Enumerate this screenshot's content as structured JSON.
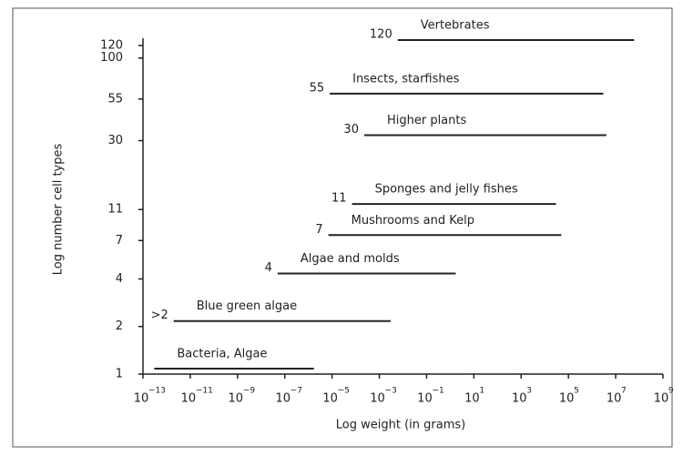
{
  "chart_data": {
    "type": "range-bar",
    "x_label": "Log weight (in grams)",
    "y_label": "Log number cell types",
    "x_scale": "log",
    "y_scale": "log",
    "xlim": [
      1e-13,
      1000000000.0
    ],
    "ylim": [
      1,
      120
    ],
    "xticks": [
      {
        "value": 1e-13,
        "label": "10",
        "sup": "−13"
      },
      {
        "value": 1e-11,
        "label": "10",
        "sup": "−11"
      },
      {
        "value": 1e-09,
        "label": "10",
        "sup": "−9"
      },
      {
        "value": 1e-07,
        "label": "10",
        "sup": "−7"
      },
      {
        "value": 1e-05,
        "label": "10",
        "sup": "−5"
      },
      {
        "value": 0.001,
        "label": "10",
        "sup": "−3"
      },
      {
        "value": 0.1,
        "label": "10",
        "sup": "−1"
      },
      {
        "value": 10,
        "label": "10",
        "sup": "1"
      },
      {
        "value": 1000,
        "label": "10",
        "sup": "3"
      },
      {
        "value": 100000,
        "label": "10",
        "sup": "5"
      },
      {
        "value": 10000000,
        "label": "10",
        "sup": "7"
      },
      {
        "value": 1000000000,
        "label": "10",
        "sup": "9"
      }
    ],
    "yticks": [
      1,
      2,
      4,
      7,
      11,
      30,
      55,
      100,
      120
    ],
    "categories": [
      "Bacteria, Algae",
      "Blue green algae",
      "Algae and molds",
      "Mushrooms and Kelp",
      "Sponges and jelly fishes",
      "Higher plants",
      "Insects, starfishes",
      "Vertebrates"
    ],
    "values": [
      1,
      2,
      4,
      7,
      11,
      30,
      55,
      120
    ],
    "value_labels": [
      null,
      ">2",
      "4",
      "7",
      "11",
      "30",
      "55",
      "120"
    ],
    "xmin": [
      3e-13,
      2e-12,
      5e-08,
      7e-06,
      7e-05,
      0.00023,
      8e-06,
      0.006
    ],
    "xmax": [
      1.7e-06,
      0.003,
      1.7,
      50000.0,
      30000.0,
      4000000.0,
      3000000.0,
      60000000.0
    ],
    "color": "#222222"
  }
}
